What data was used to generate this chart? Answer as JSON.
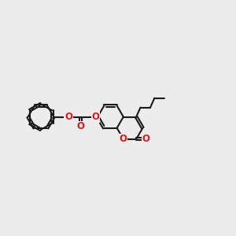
{
  "bg_color": "#ececec",
  "bond_color": "#1a1a1a",
  "oxygen_color": "#ee1111",
  "lw": 1.5,
  "fs": 8.5,
  "r": 0.55,
  "g": 0.048,
  "xlim": [
    0,
    10
  ],
  "ylim": [
    2.0,
    8.0
  ],
  "figsize": [
    3.0,
    3.0
  ],
  "dpi": 100
}
